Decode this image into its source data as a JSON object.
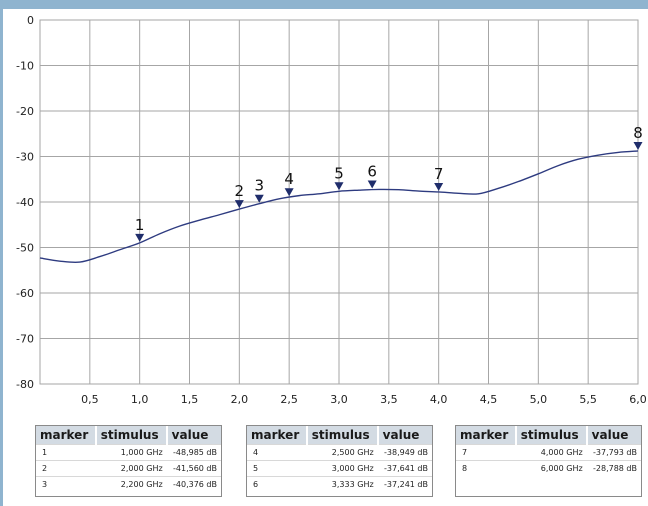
{
  "colors": {
    "frame": "#8fb4cf",
    "grid": "#a6a6a6",
    "curve": "#2e3b80",
    "marker": "#1f2d6b",
    "table_header_bg": "#d3dbe3"
  },
  "chart_data": {
    "type": "line",
    "title": "",
    "xlabel": "",
    "ylabel": "",
    "xlim": [
      0.0,
      6.0
    ],
    "ylim": [
      -80,
      0
    ],
    "x_ticks": [
      "0,5",
      "1,0",
      "1,5",
      "2,0",
      "2,5",
      "3,0",
      "3,5",
      "4,0",
      "4,5",
      "5,0",
      "5,5",
      "6,0"
    ],
    "x_tick_values": [
      0.5,
      1.0,
      1.5,
      2.0,
      2.5,
      3.0,
      3.5,
      4.0,
      4.5,
      5.0,
      5.5,
      6.0
    ],
    "y_ticks": [
      "0",
      "-10",
      "-20",
      "-30",
      "-40",
      "-50",
      "-60",
      "-70",
      "-80"
    ],
    "y_tick_values": [
      0,
      -10,
      -20,
      -30,
      -40,
      -50,
      -60,
      -70,
      -80
    ],
    "grid": true,
    "series": [
      {
        "x": [
          0.0,
          0.2,
          0.4,
          0.6,
          0.8,
          1.0,
          1.2,
          1.4,
          1.6,
          1.8,
          2.0,
          2.2,
          2.4,
          2.6,
          2.8,
          3.0,
          3.2,
          3.4,
          3.6,
          3.8,
          4.0,
          4.2,
          4.4,
          4.6,
          4.8,
          5.0,
          5.2,
          5.4,
          5.6,
          5.8,
          6.0
        ],
        "y": [
          -52.3,
          -53.0,
          -53.2,
          -52.0,
          -50.5,
          -48.985,
          -47.0,
          -45.3,
          -44.0,
          -42.8,
          -41.56,
          -40.376,
          -39.3,
          -38.6,
          -38.2,
          -37.641,
          -37.4,
          -37.241,
          -37.3,
          -37.6,
          -37.793,
          -38.1,
          -38.2,
          -37.0,
          -35.5,
          -33.8,
          -32.0,
          -30.6,
          -29.7,
          -29.1,
          -28.788
        ]
      }
    ],
    "markers": [
      {
        "label": "1",
        "x": 1.0,
        "y": -48.985
      },
      {
        "label": "2",
        "x": 2.0,
        "y": -41.56
      },
      {
        "label": "3",
        "x": 2.2,
        "y": -40.376
      },
      {
        "label": "4",
        "x": 2.5,
        "y": -38.949
      },
      {
        "label": "5",
        "x": 3.0,
        "y": -37.641
      },
      {
        "label": "6",
        "x": 3.333,
        "y": -37.241
      },
      {
        "label": "7",
        "x": 4.0,
        "y": -37.793
      },
      {
        "label": "8",
        "x": 6.0,
        "y": -28.788
      }
    ]
  },
  "marker_tables": {
    "headers": {
      "marker": "marker",
      "stimulus": "stimulus",
      "value": "value"
    },
    "t1": {
      "rows": [
        {
          "marker": "1",
          "stimulus": "1,000 GHz",
          "value": "-48,985 dB"
        },
        {
          "marker": "2",
          "stimulus": "2,000 GHz",
          "value": "-41,560 dB"
        },
        {
          "marker": "3",
          "stimulus": "2,200 GHz",
          "value": "-40,376 dB"
        }
      ]
    },
    "t2": {
      "rows": [
        {
          "marker": "4",
          "stimulus": "2,500 GHz",
          "value": "-38,949 dB"
        },
        {
          "marker": "5",
          "stimulus": "3,000 GHz",
          "value": "-37,641 dB"
        },
        {
          "marker": "6",
          "stimulus": "3,333 GHz",
          "value": "-37,241 dB"
        }
      ]
    },
    "t3": {
      "rows": [
        {
          "marker": "7",
          "stimulus": "4,000 GHz",
          "value": "-37,793 dB"
        },
        {
          "marker": "8",
          "stimulus": "6,000 GHz",
          "value": "-28,788 dB"
        }
      ]
    }
  }
}
